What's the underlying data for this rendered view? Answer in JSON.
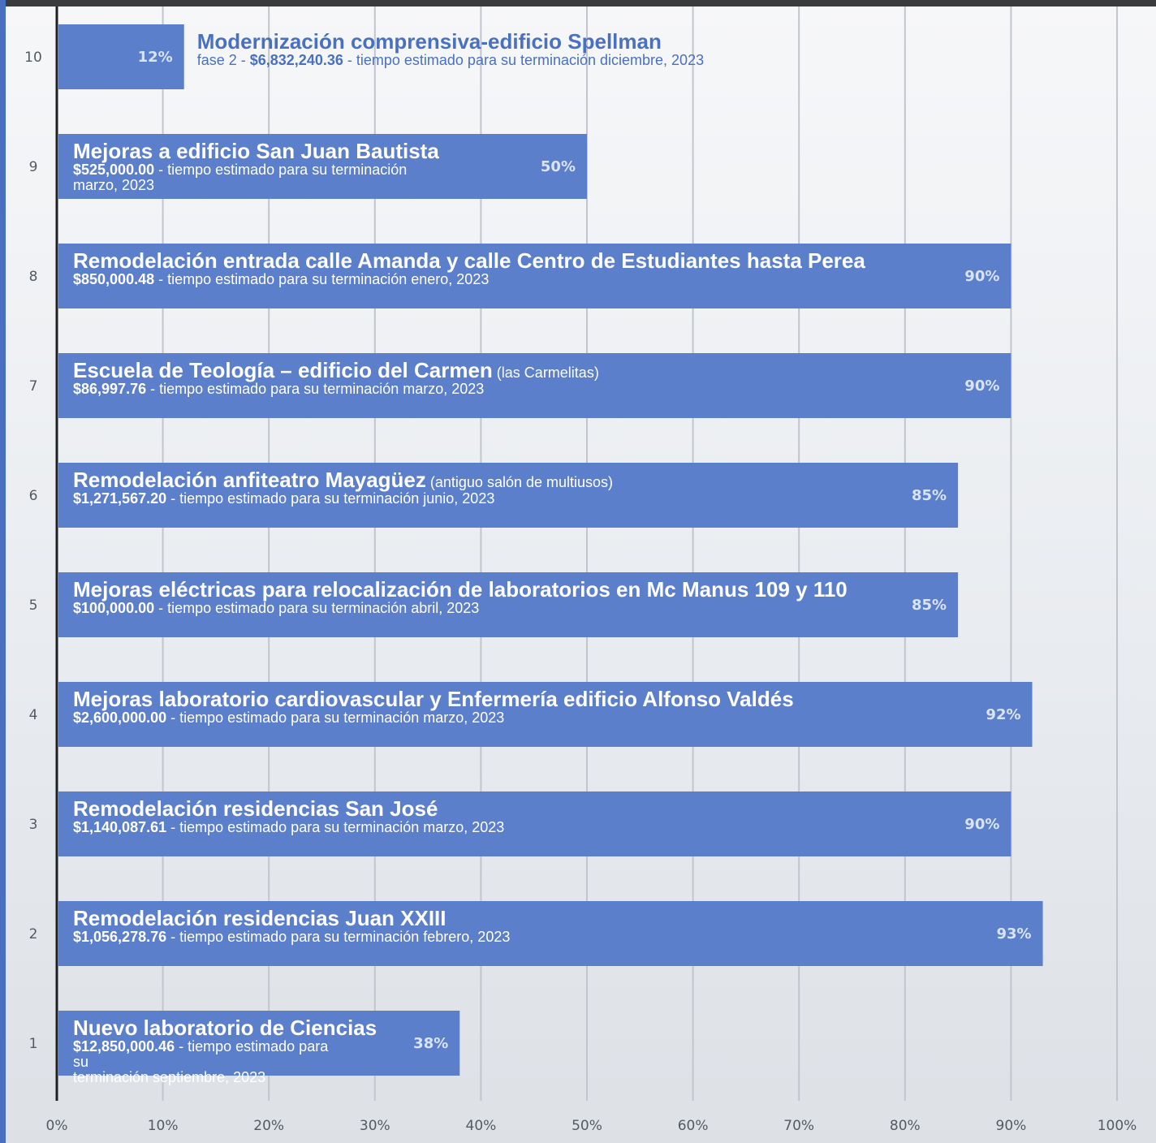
{
  "chart_data": {
    "type": "bar",
    "orientation": "horizontal",
    "x_ticks": [
      "0%",
      "10%",
      "20%",
      "30%",
      "40%",
      "50%",
      "60%",
      "70%",
      "80%",
      "90%",
      "100%"
    ],
    "xlim": [
      0,
      100
    ],
    "grid": true,
    "bar_color": "#5b7fcb",
    "categories": [
      "10",
      "9",
      "8",
      "7",
      "6",
      "5",
      "4",
      "3",
      "2",
      "1"
    ],
    "values": [
      12,
      50,
      90,
      90,
      85,
      85,
      92,
      90,
      93,
      38
    ],
    "data_labels": [
      "12%",
      "50%",
      "90%",
      "90%",
      "85%",
      "85%",
      "92%",
      "90%",
      "93%",
      "38%"
    ],
    "annotations": [
      {
        "title": "Modernización comprensiva-edificio Spellman",
        "note": "",
        "prefix": "fase 2 - ",
        "amount": "$6,832,240.36",
        "rest": " - tiempo estimado para su terminación diciembre, 2023"
      },
      {
        "title": "Mejoras a edificio San Juan Bautista",
        "note": "",
        "prefix": "",
        "amount": "$525,000.00",
        "rest": " - tiempo estimado para su terminación",
        "rest2": "marzo, 2023"
      },
      {
        "title": "Remodelación entrada calle Amanda y calle Centro de Estudiantes hasta Perea",
        "note": "",
        "prefix": "",
        "amount": "$850,000.48",
        "rest": " - tiempo estimado para su terminación enero,  2023"
      },
      {
        "title": "Escuela de Teología – edificio del Carmen",
        "note": " (las Carmelitas)",
        "prefix": "",
        "amount": "$86,997.76",
        "rest": " - tiempo estimado para su terminación  marzo, 2023"
      },
      {
        "title": "Remodelación anfiteatro Mayagüez",
        "note": " (antiguo salón de multiusos)",
        "prefix": "",
        "amount": "$1,271,567.20",
        "rest": " - tiempo estimado para su terminación  junio, 2023"
      },
      {
        "title": "Mejoras eléctricas para relocalización de laboratorios en Mc Manus 109 y 110",
        "note": "",
        "prefix": "",
        "amount": "$100,000.00",
        "rest": " - tiempo estimado para su terminación  abril, 2023"
      },
      {
        "title": "Mejoras laboratorio cardiovascular y Enfermería edificio Alfonso Valdés",
        "note": "",
        "prefix": "",
        "amount": "$2,600,000.00",
        "rest": " - tiempo estimado para su terminación  marzo, 2023"
      },
      {
        "title": "Remodelación residencias San José",
        "note": "",
        "prefix": "",
        "amount": "$1,140,087.61",
        "rest": " - tiempo estimado para su terminación marzo, 2023"
      },
      {
        "title": "Remodelación residencias Juan XXIII",
        "note": "",
        "prefix": "",
        "amount": "$1,056,278.76",
        "rest": " - tiempo estimado para su terminación febrero, 2023"
      },
      {
        "title": "Nuevo laboratorio de Ciencias",
        "note": "",
        "prefix": "",
        "amount": "$12,850,000.46",
        "rest": " - tiempo estimado para su",
        "rest2": "terminación septiembre, 2023"
      }
    ]
  }
}
